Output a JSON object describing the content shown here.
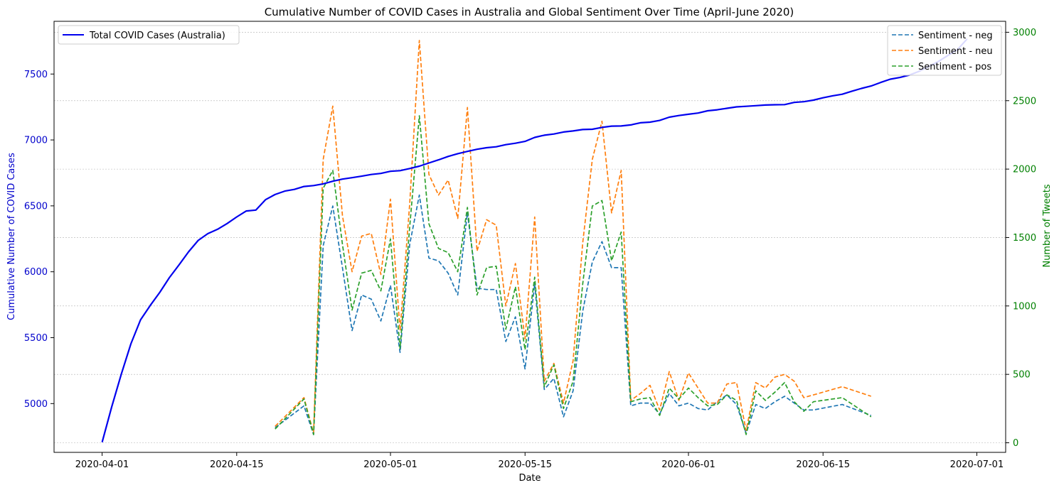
{
  "chart_data": {
    "type": "line",
    "title": "Cumulative Number of COVID Cases in Australia and Global Sentiment Over Time (April-June 2020)",
    "xlabel": "Date",
    "ylabel_left": "Cumulative Number of COVID Cases",
    "ylabel_right": "Number of Tweets",
    "x_ticks": [
      "2020-04-01",
      "2020-04-15",
      "2020-05-01",
      "2020-05-15",
      "2020-06-01",
      "2020-06-15",
      "2020-07-01"
    ],
    "x_range": [
      "2020-03-27",
      "2020-07-04"
    ],
    "y_left_range": [
      4630,
      7900
    ],
    "y_left_ticks": [
      5000,
      5500,
      6000,
      6500,
      7000,
      7500
    ],
    "y_right_range": [
      -70,
      3080
    ],
    "y_right_ticks": [
      0,
      500,
      1000,
      1500,
      2000,
      2500,
      3000
    ],
    "grid": "horizontal dotted, right axis",
    "colors": {
      "cases": "#0000ee",
      "neg": "#1f77b4",
      "neu": "#ff7f0e",
      "pos": "#2ca02c",
      "left_axis": "#0000cc",
      "right_axis": "#008000"
    },
    "legends": {
      "left": {
        "placement": "top-left",
        "entries": [
          "Total COVID Cases (Australia)"
        ]
      },
      "right": {
        "placement": "top-right",
        "entries": [
          "Sentiment - neg",
          "Sentiment - neu",
          "Sentiment - pos"
        ]
      }
    },
    "cases_series": {
      "name": "Total COVID Cases (Australia)",
      "x": [
        "2020-04-01",
        "2020-04-02",
        "2020-04-03",
        "2020-04-04",
        "2020-04-05",
        "2020-04-06",
        "2020-04-07",
        "2020-04-08",
        "2020-04-09",
        "2020-04-10",
        "2020-04-11",
        "2020-04-12",
        "2020-04-13",
        "2020-04-14",
        "2020-04-15",
        "2020-04-16",
        "2020-04-17",
        "2020-04-18",
        "2020-04-19",
        "2020-04-20",
        "2020-04-21",
        "2020-04-22",
        "2020-04-23",
        "2020-04-24",
        "2020-04-25",
        "2020-04-26",
        "2020-04-27",
        "2020-04-28",
        "2020-04-29",
        "2020-04-30",
        "2020-05-01",
        "2020-05-02",
        "2020-05-03",
        "2020-05-04",
        "2020-05-05",
        "2020-05-06",
        "2020-05-07",
        "2020-05-08",
        "2020-05-09",
        "2020-05-10",
        "2020-05-11",
        "2020-05-12",
        "2020-05-13",
        "2020-05-14",
        "2020-05-15",
        "2020-05-16",
        "2020-05-17",
        "2020-05-18",
        "2020-05-19",
        "2020-05-20",
        "2020-05-21",
        "2020-05-22",
        "2020-05-23",
        "2020-05-24",
        "2020-05-25",
        "2020-05-26",
        "2020-05-27",
        "2020-05-28",
        "2020-05-29",
        "2020-05-30",
        "2020-05-31",
        "2020-06-01",
        "2020-06-02",
        "2020-06-03",
        "2020-06-04",
        "2020-06-05",
        "2020-06-06",
        "2020-06-07",
        "2020-06-08",
        "2020-06-09",
        "2020-06-10",
        "2020-06-11",
        "2020-06-12",
        "2020-06-13",
        "2020-06-14",
        "2020-06-15",
        "2020-06-16",
        "2020-06-17",
        "2020-06-18",
        "2020-06-19",
        "2020-06-20",
        "2020-06-21",
        "2020-06-22",
        "2020-06-23",
        "2020-06-24",
        "2020-06-25",
        "2020-06-26",
        "2020-06-27",
        "2020-06-28",
        "2020-06-29",
        "2020-06-30"
      ],
      "values": [
        4707,
        4976,
        5224,
        5454,
        5635,
        5744,
        5844,
        5956,
        6052,
        6152,
        6238,
        6289,
        6322,
        6366,
        6416,
        6461,
        6468,
        6547,
        6586,
        6612,
        6625,
        6647,
        6654,
        6667,
        6687,
        6703,
        6714,
        6725,
        6738,
        6746,
        6762,
        6767,
        6783,
        6801,
        6825,
        6849,
        6875,
        6896,
        6913,
        6929,
        6941,
        6948,
        6964,
        6975,
        6989,
        7019,
        7036,
        7045,
        7060,
        7068,
        7079,
        7081,
        7095,
        7105,
        7106,
        7114,
        7130,
        7135,
        7148,
        7173,
        7185,
        7195,
        7204,
        7221,
        7229,
        7240,
        7251,
        7255,
        7260,
        7265,
        7267,
        7268,
        7285,
        7290,
        7302,
        7320,
        7335,
        7347,
        7370,
        7391,
        7409,
        7436,
        7461,
        7474,
        7492,
        7521,
        7558,
        7595,
        7641,
        7686,
        7767
      ]
    },
    "sentiment_x": [
      "2020-04-19",
      "2020-04-22",
      "2020-04-23",
      "2020-04-24",
      "2020-04-25",
      "2020-04-26",
      "2020-04-27",
      "2020-04-28",
      "2020-04-29",
      "2020-04-30",
      "2020-05-01",
      "2020-05-02",
      "2020-05-03",
      "2020-05-04",
      "2020-05-05",
      "2020-05-06",
      "2020-05-07",
      "2020-05-08",
      "2020-05-09",
      "2020-05-10",
      "2020-05-11",
      "2020-05-12",
      "2020-05-13",
      "2020-05-14",
      "2020-05-15",
      "2020-05-16",
      "2020-05-17",
      "2020-05-18",
      "2020-05-19",
      "2020-05-20",
      "2020-05-21",
      "2020-05-22",
      "2020-05-23",
      "2020-05-24",
      "2020-05-25",
      "2020-05-26",
      "2020-05-27",
      "2020-05-28",
      "2020-05-29",
      "2020-05-30",
      "2020-05-31",
      "2020-06-01",
      "2020-06-02",
      "2020-06-03",
      "2020-06-04",
      "2020-06-05",
      "2020-06-06",
      "2020-06-07",
      "2020-06-08",
      "2020-06-09",
      "2020-06-10",
      "2020-06-11",
      "2020-06-12",
      "2020-06-13",
      "2020-06-14",
      "2020-06-17",
      "2020-06-20"
    ],
    "series": [
      {
        "name": "Sentiment - neg",
        "values": [
          110,
          270,
          60,
          1440,
          1730,
          1280,
          820,
          1080,
          1050,
          890,
          1150,
          660,
          1450,
          1810,
          1350,
          1330,
          1240,
          1080,
          1680,
          1130,
          1120,
          1120,
          740,
          920,
          540,
          1160,
          390,
          470,
          190,
          380,
          960,
          1320,
          1470,
          1280,
          1280,
          270,
          290,
          290,
          210,
          360,
          270,
          290,
          250,
          240,
          300,
          350,
          280,
          70,
          280,
          250,
          300,
          340,
          290,
          240,
          240,
          280,
          200
        ]
      },
      {
        "name": "Sentiment - neu",
        "values": [
          120,
          330,
          70,
          2070,
          2460,
          1660,
          1250,
          1510,
          1530,
          1230,
          1780,
          820,
          1750,
          2940,
          1960,
          1810,
          1920,
          1640,
          2450,
          1400,
          1630,
          1590,
          1000,
          1310,
          760,
          1650,
          450,
          580,
          290,
          600,
          1460,
          2070,
          2350,
          1680,
          1990,
          310,
          360,
          420,
          240,
          520,
          310,
          510,
          400,
          290,
          290,
          430,
          440,
          90,
          440,
          400,
          480,
          500,
          450,
          330,
          350,
          410,
          340
        ]
      },
      {
        "name": "Sentiment - pos",
        "values": [
          100,
          320,
          60,
          1860,
          1990,
          1450,
          970,
          1240,
          1260,
          1110,
          1490,
          690,
          1580,
          2390,
          1600,
          1420,
          1390,
          1250,
          1720,
          1080,
          1280,
          1290,
          830,
          1140,
          680,
          1210,
          410,
          570,
          250,
          450,
          1160,
          1730,
          1770,
          1330,
          1540,
          300,
          320,
          330,
          200,
          400,
          320,
          400,
          330,
          270,
          280,
          350,
          310,
          60,
          380,
          310,
          370,
          440,
          300,
          230,
          300,
          330,
          190
        ]
      }
    ]
  }
}
